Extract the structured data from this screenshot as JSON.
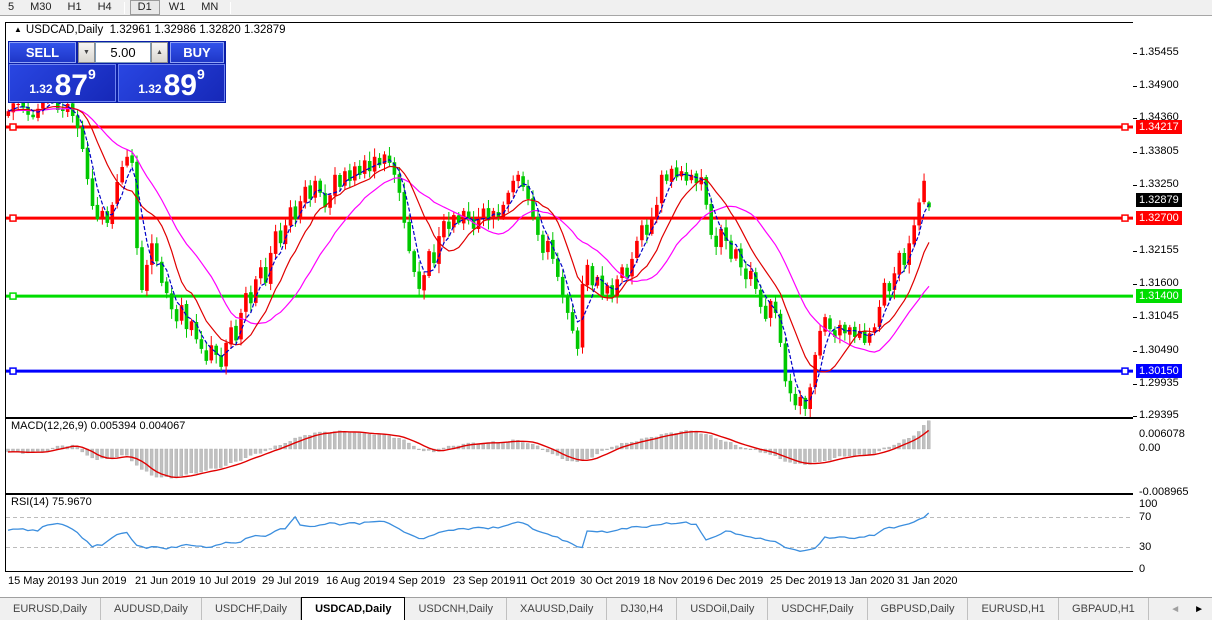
{
  "toolbar": {
    "timeframes": [
      "5",
      "M30",
      "H1",
      "H4",
      "D1",
      "W1",
      "MN"
    ],
    "active": "D1"
  },
  "chart_header": {
    "symbol_title": "USDCAD,Daily",
    "open": "1.32961",
    "high": "1.32986",
    "low": "1.32820",
    "close": "1.32879"
  },
  "trade_panel": {
    "sell_label": "SELL",
    "buy_label": "BUY",
    "volume": "5.00",
    "sell_price_small": "1.32",
    "sell_price_big": "87",
    "sell_price_sup": "9",
    "buy_price_small": "1.32",
    "buy_price_big": "89",
    "buy_price_sup": "9",
    "spin_down_icon": "▼",
    "spin_up_icon": "▲"
  },
  "colors": {
    "bull": "#ff0000",
    "bear": "#00c800",
    "ma_fast": "#0000c8",
    "ma_mid": "#e00000",
    "ma_slow": "#ff00ff",
    "macd_hist": "#c0c0c0",
    "macd_signal": "#e00000",
    "rsi_line": "#3b8ede",
    "level_red": "#ff0000",
    "level_green": "#00dd00",
    "level_blue": "#0000ff",
    "current_badge_bg": "#000000"
  },
  "chart_data": {
    "type": "candlestick",
    "symbol": "USDCAD",
    "timeframe": "Daily",
    "num_candles": 187,
    "last_candle": {
      "open": 1.32961,
      "high": 1.32986,
      "low": 1.3282,
      "close": 1.32879
    },
    "price_axis_ticks": [
      1.35455,
      1.349,
      1.3436,
      1.33805,
      1.3325,
      1.32155,
      1.316,
      1.31045,
      1.3049,
      1.29935,
      1.29395
    ],
    "current_price": 1.32879,
    "levels": [
      {
        "price": 1.34217,
        "label": "1.34217",
        "color_key": "level_red",
        "right_marker": true
      },
      {
        "price": 1.327,
        "label": "1.32700",
        "color_key": "level_red",
        "right_marker": true
      },
      {
        "price": 1.314,
        "label": "1.31400",
        "color_key": "level_green",
        "right_marker": false
      },
      {
        "price": 1.3015,
        "label": "1.30150",
        "color_key": "level_blue",
        "right_marker": true
      }
    ],
    "close_anchors": [
      [
        0,
        1.3448
      ],
      [
        2,
        1.346
      ],
      [
        4,
        1.3442
      ],
      [
        6,
        1.3452
      ],
      [
        8,
        1.347
      ],
      [
        10,
        1.345
      ],
      [
        12,
        1.346
      ],
      [
        13,
        1.344
      ],
      [
        14,
        1.342
      ],
      [
        15,
        1.3385
      ],
      [
        16,
        1.3335
      ],
      [
        17,
        1.329
      ],
      [
        18,
        1.3268
      ],
      [
        19,
        1.3282
      ],
      [
        20,
        1.3262
      ],
      [
        21,
        1.3292
      ],
      [
        22,
        1.333
      ],
      [
        23,
        1.3355
      ],
      [
        24,
        1.3372
      ],
      [
        25,
        1.3362
      ],
      [
        26,
        1.322
      ],
      [
        27,
        1.315
      ],
      [
        28,
        1.3192
      ],
      [
        29,
        1.3228
      ],
      [
        30,
        1.3198
      ],
      [
        31,
        1.3162
      ],
      [
        32,
        1.3145
      ],
      [
        33,
        1.3118
      ],
      [
        34,
        1.3098
      ],
      [
        35,
        1.3125
      ],
      [
        36,
        1.3085
      ],
      [
        37,
        1.3098
      ],
      [
        38,
        1.3068
      ],
      [
        39,
        1.3052
      ],
      [
        40,
        1.3032
      ],
      [
        41,
        1.3058
      ],
      [
        42,
        1.3042
      ],
      [
        43,
        1.3022
      ],
      [
        44,
        1.3062
      ],
      [
        45,
        1.3088
      ],
      [
        46,
        1.3066
      ],
      [
        47,
        1.3112
      ],
      [
        48,
        1.3145
      ],
      [
        49,
        1.3128
      ],
      [
        50,
        1.3168
      ],
      [
        51,
        1.3188
      ],
      [
        52,
        1.3162
      ],
      [
        53,
        1.3212
      ],
      [
        54,
        1.3248
      ],
      [
        55,
        1.3228
      ],
      [
        56,
        1.3258
      ],
      [
        57,
        1.3288
      ],
      [
        58,
        1.3268
      ],
      [
        59,
        1.3298
      ],
      [
        60,
        1.3322
      ],
      [
        61,
        1.3302
      ],
      [
        62,
        1.3332
      ],
      [
        63,
        1.3312
      ],
      [
        64,
        1.3288
      ],
      [
        65,
        1.3308
      ],
      [
        66,
        1.3342
      ],
      [
        67,
        1.3322
      ],
      [
        68,
        1.3348
      ],
      [
        69,
        1.3332
      ],
      [
        70,
        1.3356
      ],
      [
        71,
        1.3342
      ],
      [
        72,
        1.3366
      ],
      [
        73,
        1.3348
      ],
      [
        74,
        1.3372
      ],
      [
        75,
        1.3358
      ],
      [
        76,
        1.3376
      ],
      [
        77,
        1.3362
      ],
      [
        78,
        1.3342
      ],
      [
        79,
        1.3312
      ],
      [
        80,
        1.3262
      ],
      [
        81,
        1.3215
      ],
      [
        82,
        1.318
      ],
      [
        83,
        1.3152
      ],
      [
        84,
        1.3175
      ],
      [
        85,
        1.3215
      ],
      [
        86,
        1.3195
      ],
      [
        87,
        1.324
      ],
      [
        88,
        1.3265
      ],
      [
        89,
        1.3252
      ],
      [
        90,
        1.3275
      ],
      [
        91,
        1.3262
      ],
      [
        92,
        1.3282
      ],
      [
        93,
        1.3266
      ],
      [
        94,
        1.3252
      ],
      [
        95,
        1.3272
      ],
      [
        96,
        1.3286
      ],
      [
        97,
        1.3266
      ],
      [
        98,
        1.3282
      ],
      [
        99,
        1.3272
      ],
      [
        100,
        1.3292
      ],
      [
        101,
        1.3312
      ],
      [
        102,
        1.3332
      ],
      [
        103,
        1.3342
      ],
      [
        104,
        1.3322
      ],
      [
        105,
        1.3302
      ],
      [
        106,
        1.3272
      ],
      [
        107,
        1.3242
      ],
      [
        108,
        1.3212
      ],
      [
        109,
        1.3232
      ],
      [
        110,
        1.3202
      ],
      [
        111,
        1.3172
      ],
      [
        112,
        1.3142
      ],
      [
        113,
        1.3112
      ],
      [
        114,
        1.3082
      ],
      [
        115,
        1.3052
      ],
      [
        116,
        1.316
      ],
      [
        117,
        1.3192
      ],
      [
        118,
        1.3158
      ],
      [
        119,
        1.3172
      ],
      [
        120,
        1.3142
      ],
      [
        121,
        1.3158
      ],
      [
        122,
        1.3138
      ],
      [
        123,
        1.3168
      ],
      [
        124,
        1.3188
      ],
      [
        125,
        1.3172
      ],
      [
        126,
        1.3202
      ],
      [
        127,
        1.3232
      ],
      [
        128,
        1.3258
      ],
      [
        129,
        1.3242
      ],
      [
        130,
        1.3272
      ],
      [
        131,
        1.3292
      ],
      [
        132,
        1.3342
      ],
      [
        133,
        1.3332
      ],
      [
        134,
        1.3352
      ],
      [
        135,
        1.3338
      ],
      [
        136,
        1.3348
      ],
      [
        137,
        1.3332
      ],
      [
        138,
        1.3342
      ],
      [
        139,
        1.3328
      ],
      [
        140,
        1.3338
      ],
      [
        141,
        1.3292
      ],
      [
        142,
        1.3242
      ],
      [
        143,
        1.3222
      ],
      [
        144,
        1.3252
      ],
      [
        145,
        1.3232
      ],
      [
        146,
        1.3202
      ],
      [
        147,
        1.3218
      ],
      [
        148,
        1.3188
      ],
      [
        149,
        1.3168
      ],
      [
        150,
        1.3182
      ],
      [
        151,
        1.3152
      ],
      [
        152,
        1.3122
      ],
      [
        153,
        1.3102
      ],
      [
        154,
        1.3132
      ],
      [
        155,
        1.3112
      ],
      [
        156,
        1.3062
      ],
      [
        157,
        1.2998
      ],
      [
        158,
        1.2978
      ],
      [
        159,
        1.2958
      ],
      [
        160,
        1.2972
      ],
      [
        161,
        1.2952
      ],
      [
        162,
        1.2988
      ],
      [
        163,
        1.3042
      ],
      [
        164,
        1.3082
      ],
      [
        165,
        1.3105
      ],
      [
        166,
        1.3085
      ],
      [
        167,
        1.3072
      ],
      [
        168,
        1.3092
      ],
      [
        169,
        1.3078
      ],
      [
        170,
        1.3088
      ],
      [
        171,
        1.3072
      ],
      [
        172,
        1.3082
      ],
      [
        173,
        1.3062
      ],
      [
        174,
        1.3078
      ],
      [
        175,
        1.3088
      ],
      [
        176,
        1.3122
      ],
      [
        177,
        1.3162
      ],
      [
        178,
        1.3148
      ],
      [
        179,
        1.3178
      ],
      [
        180,
        1.3212
      ],
      [
        181,
        1.3192
      ],
      [
        182,
        1.3228
      ],
      [
        183,
        1.3258
      ],
      [
        184,
        1.3296
      ],
      [
        185,
        1.3332
      ],
      [
        186,
        1.32879
      ]
    ],
    "ma_periods": {
      "fast": 4,
      "mid": 10,
      "slow": 20
    },
    "macd": {
      "label": "MACD(12,26,9)",
      "main_value": "0.005394",
      "signal_value": "0.004067",
      "axis": [
        "0.006078",
        "0.00",
        "-0.008965"
      ],
      "axis_values": [
        0.006078,
        0.0,
        -0.008965
      ],
      "hist_anchors": [
        [
          0,
          -0.0006
        ],
        [
          4,
          -0.0008
        ],
        [
          8,
          -0.0004
        ],
        [
          10,
          0.0006
        ],
        [
          13,
          0.0008
        ],
        [
          15,
          -0.0006
        ],
        [
          18,
          -0.0022
        ],
        [
          21,
          -0.0018
        ],
        [
          24,
          -0.0013
        ],
        [
          27,
          -0.0042
        ],
        [
          30,
          -0.0058
        ],
        [
          33,
          -0.006
        ],
        [
          36,
          -0.0052
        ],
        [
          40,
          -0.0044
        ],
        [
          44,
          -0.0034
        ],
        [
          48,
          -0.0018
        ],
        [
          52,
          -0.0004
        ],
        [
          56,
          0.0012
        ],
        [
          60,
          0.0028
        ],
        [
          64,
          0.0035
        ],
        [
          68,
          0.0036
        ],
        [
          72,
          0.0032
        ],
        [
          76,
          0.003
        ],
        [
          79,
          0.0022
        ],
        [
          82,
          0.0006
        ],
        [
          84,
          -0.0004
        ],
        [
          86,
          -0.0006
        ],
        [
          88,
          0.0002
        ],
        [
          92,
          0.001
        ],
        [
          96,
          0.0012
        ],
        [
          100,
          0.0014
        ],
        [
          103,
          0.0018
        ],
        [
          106,
          0.001
        ],
        [
          109,
          -0.0006
        ],
        [
          112,
          -0.002
        ],
        [
          115,
          -0.0026
        ],
        [
          117,
          -0.002
        ],
        [
          119,
          -0.001
        ],
        [
          122,
          0.0004
        ],
        [
          126,
          0.0014
        ],
        [
          130,
          0.0024
        ],
        [
          133,
          0.0032
        ],
        [
          136,
          0.0036
        ],
        [
          139,
          0.0036
        ],
        [
          141,
          0.003
        ],
        [
          144,
          0.0018
        ],
        [
          147,
          0.0008
        ],
        [
          150,
          0.0
        ],
        [
          153,
          -0.0008
        ],
        [
          156,
          -0.002
        ],
        [
          159,
          -0.003
        ],
        [
          161,
          -0.0032
        ],
        [
          164,
          -0.0026
        ],
        [
          167,
          -0.0018
        ],
        [
          170,
          -0.0014
        ],
        [
          173,
          -0.0012
        ],
        [
          176,
          -0.0004
        ],
        [
          179,
          0.0008
        ],
        [
          182,
          0.0022
        ],
        [
          184,
          0.0036
        ],
        [
          186,
          0.0058
        ]
      ]
    },
    "rsi": {
      "label": "RSI(14)",
      "value": "75.9670",
      "axis": [
        "100",
        "70",
        "30",
        "0"
      ],
      "axis_values": [
        100,
        70,
        30,
        0
      ],
      "overbought": 70,
      "oversold": 30,
      "anchors": [
        [
          0,
          53
        ],
        [
          3,
          55
        ],
        [
          6,
          52
        ],
        [
          8,
          60
        ],
        [
          10,
          62
        ],
        [
          12,
          58
        ],
        [
          14,
          50
        ],
        [
          16,
          38
        ],
        [
          17,
          31
        ],
        [
          19,
          33
        ],
        [
          21,
          43
        ],
        [
          23,
          49
        ],
        [
          24,
          50
        ],
        [
          26,
          33
        ],
        [
          28,
          29
        ],
        [
          30,
          31
        ],
        [
          32,
          28
        ],
        [
          34,
          30
        ],
        [
          36,
          34
        ],
        [
          38,
          32
        ],
        [
          40,
          30
        ],
        [
          42,
          33
        ],
        [
          44,
          37
        ],
        [
          46,
          36
        ],
        [
          48,
          42
        ],
        [
          50,
          46
        ],
        [
          52,
          45
        ],
        [
          54,
          52
        ],
        [
          56,
          55
        ],
        [
          58,
          71
        ],
        [
          59,
          60
        ],
        [
          61,
          58
        ],
        [
          63,
          60
        ],
        [
          65,
          63
        ],
        [
          67,
          60
        ],
        [
          69,
          63
        ],
        [
          71,
          61
        ],
        [
          73,
          64
        ],
        [
          75,
          65
        ],
        [
          77,
          62
        ],
        [
          79,
          55
        ],
        [
          81,
          48
        ],
        [
          83,
          42
        ],
        [
          85,
          45
        ],
        [
          87,
          50
        ],
        [
          89,
          53
        ],
        [
          91,
          55
        ],
        [
          93,
          54
        ],
        [
          95,
          57
        ],
        [
          97,
          55
        ],
        [
          99,
          56
        ],
        [
          101,
          60
        ],
        [
          103,
          64
        ],
        [
          105,
          60
        ],
        [
          107,
          52
        ],
        [
          109,
          48
        ],
        [
          111,
          44
        ],
        [
          113,
          38
        ],
        [
          115,
          31
        ],
        [
          116,
          30
        ],
        [
          117,
          52
        ],
        [
          119,
          51
        ],
        [
          121,
          50
        ],
        [
          123,
          53
        ],
        [
          125,
          55
        ],
        [
          127,
          58
        ],
        [
          129,
          57
        ],
        [
          131,
          60
        ],
        [
          133,
          63
        ],
        [
          135,
          62
        ],
        [
          137,
          64
        ],
        [
          139,
          61
        ],
        [
          141,
          40
        ],
        [
          143,
          45
        ],
        [
          145,
          52
        ],
        [
          147,
          48
        ],
        [
          149,
          45
        ],
        [
          151,
          42
        ],
        [
          153,
          40
        ],
        [
          155,
          38
        ],
        [
          157,
          30
        ],
        [
          159,
          27
        ],
        [
          161,
          26
        ],
        [
          163,
          29
        ],
        [
          165,
          44
        ],
        [
          167,
          43
        ],
        [
          169,
          44
        ],
        [
          171,
          42
        ],
        [
          173,
          44
        ],
        [
          175,
          46
        ],
        [
          177,
          55
        ],
        [
          179,
          56
        ],
        [
          181,
          60
        ],
        [
          183,
          64
        ],
        [
          185,
          70
        ],
        [
          186,
          76
        ]
      ]
    },
    "dates": [
      "15 May 2019",
      "3 Jun 2019",
      "21 Jun 2019",
      "10 Jul 2019",
      "29 Jul 2019",
      "16 Aug 2019",
      "4 Sep 2019",
      "23 Sep 2019",
      "11 Oct 2019",
      "30 Oct 2019",
      "18 Nov 2019",
      "6 Dec 2019",
      "25 Dec 2019",
      "13 Jan 2020",
      "31 Jan 2020"
    ]
  },
  "tabs": {
    "items": [
      "EURUSD,Daily",
      "AUDUSD,Daily",
      "USDCHF,Daily",
      "USDCAD,Daily",
      "USDCNH,Daily",
      "XAUUSD,Daily",
      "DJ30,H4",
      "USDOil,Daily",
      "USDCHF,Daily",
      "GBPUSD,Daily",
      "EURUSD,H1",
      "GBPAUD,H1"
    ],
    "active_index": 3,
    "arrow_left_icon": "◄",
    "arrow_right_icon": "►"
  }
}
